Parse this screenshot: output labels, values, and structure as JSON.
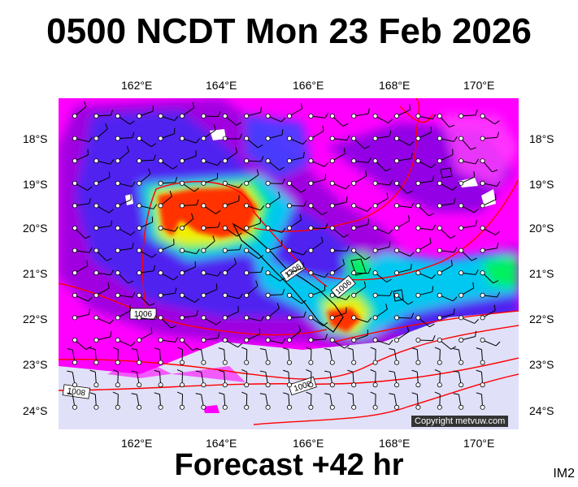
{
  "title": "0500 NCDT Mon 23 Feb 2026",
  "footer": "Forecast +42 hr",
  "image_code": "IM2",
  "copyright": "Copyright metvuw.com",
  "lon_ticks": [
    "162°E",
    "164°E",
    "166°E",
    "168°E",
    "170°E"
  ],
  "lat_ticks": [
    "18°S",
    "19°S",
    "20°S",
    "21°S",
    "22°S",
    "23°S",
    "24°S"
  ],
  "isobar_labels": [
    "1006",
    "1006",
    "1006",
    "1008",
    "1008"
  ],
  "colors": {
    "magenta": "#ff00ff",
    "violet": "#a000e0",
    "blue": "#3030ff",
    "cyan": "#00c8f0",
    "green": "#00f060",
    "yellow": "#f0f000",
    "red": "#ff3000",
    "nodata": "#e0e0f8",
    "isobar": "#ff0000"
  }
}
